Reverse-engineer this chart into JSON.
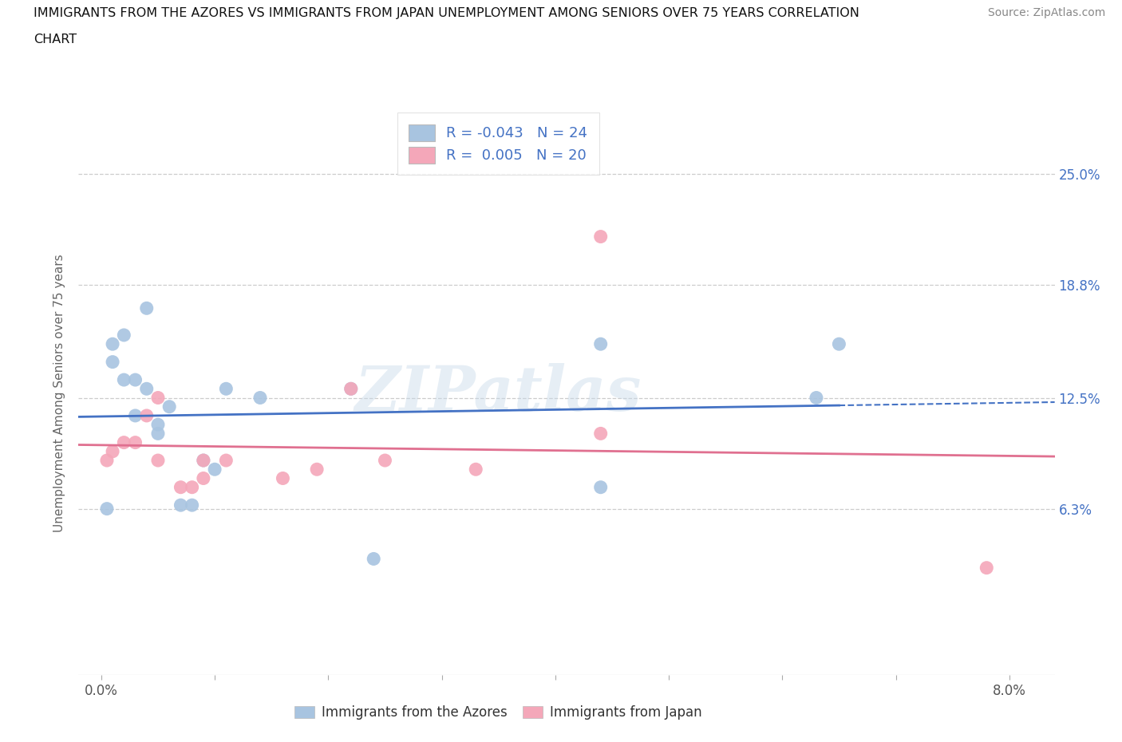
{
  "title_line1": "IMMIGRANTS FROM THE AZORES VS IMMIGRANTS FROM JAPAN UNEMPLOYMENT AMONG SENIORS OVER 75 YEARS CORRELATION",
  "title_line2": "CHART",
  "source": "Source: ZipAtlas.com",
  "ylabel": "Unemployment Among Seniors over 75 years",
  "x_tick_positions": [
    0.0,
    0.01,
    0.02,
    0.03,
    0.04,
    0.05,
    0.06,
    0.07,
    0.08
  ],
  "x_tick_labels": [
    "0.0%",
    "",
    "",
    "",
    "",
    "",
    "",
    "",
    "8.0%"
  ],
  "y_tick_positions": [
    0.063,
    0.125,
    0.188,
    0.25
  ],
  "y_right_labels": [
    "6.3%",
    "12.5%",
    "18.8%",
    "25.0%"
  ],
  "xlim": [
    -0.002,
    0.084
  ],
  "ylim": [
    -0.03,
    0.285
  ],
  "azores_R": "-0.043",
  "azores_N": "24",
  "japan_R": "0.005",
  "japan_N": "20",
  "azores_color": "#a8c4e0",
  "japan_color": "#f4a7b9",
  "azores_line_color": "#4472c4",
  "japan_line_color": "#e07090",
  "azores_x": [
    0.0005,
    0.001,
    0.001,
    0.002,
    0.002,
    0.003,
    0.003,
    0.004,
    0.004,
    0.005,
    0.005,
    0.006,
    0.007,
    0.008,
    0.009,
    0.01,
    0.011,
    0.014,
    0.022,
    0.024,
    0.044,
    0.044,
    0.063,
    0.065
  ],
  "azores_y": [
    0.063,
    0.145,
    0.155,
    0.135,
    0.16,
    0.115,
    0.135,
    0.13,
    0.175,
    0.105,
    0.11,
    0.12,
    0.065,
    0.065,
    0.09,
    0.085,
    0.13,
    0.125,
    0.13,
    0.035,
    0.075,
    0.155,
    0.125,
    0.155
  ],
  "japan_x": [
    0.0005,
    0.001,
    0.002,
    0.003,
    0.004,
    0.005,
    0.005,
    0.007,
    0.008,
    0.009,
    0.009,
    0.011,
    0.016,
    0.019,
    0.022,
    0.025,
    0.033,
    0.044,
    0.044,
    0.078
  ],
  "japan_y": [
    0.09,
    0.095,
    0.1,
    0.1,
    0.115,
    0.125,
    0.09,
    0.075,
    0.075,
    0.08,
    0.09,
    0.09,
    0.08,
    0.085,
    0.13,
    0.09,
    0.085,
    0.105,
    0.215,
    0.03
  ],
  "watermark": "ZIPatlas",
  "bg_color": "#ffffff",
  "grid_color": "#cccccc",
  "legend_label_azores": "Immigrants from the Azores",
  "legend_label_japan": "Immigrants from Japan"
}
